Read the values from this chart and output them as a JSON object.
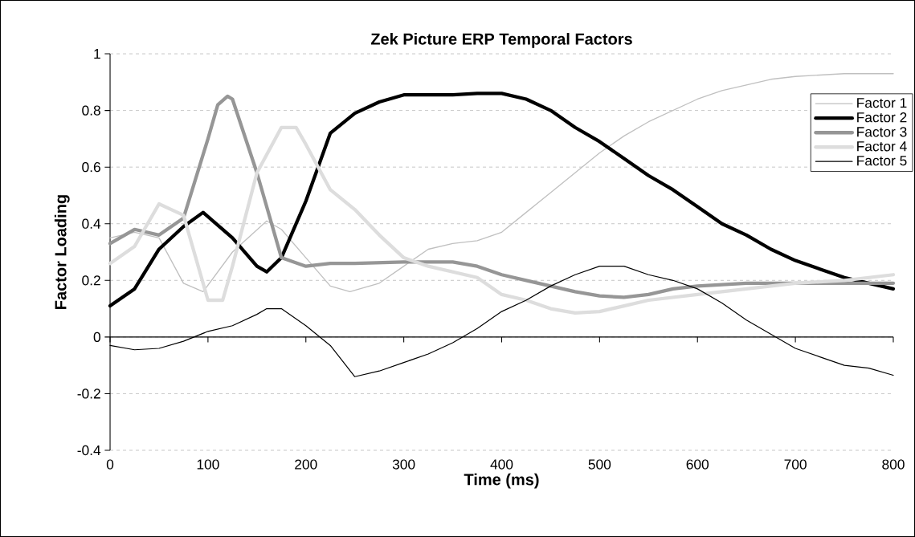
{
  "chart_data": {
    "type": "line",
    "title": "Zek Picture ERP Temporal Factors",
    "xlabel": "Time (ms)",
    "ylabel": "Factor Loading",
    "xlim": [
      0,
      800
    ],
    "xticks": [
      0,
      100,
      200,
      300,
      400,
      500,
      600,
      700,
      800
    ],
    "ylim": [
      -0.4,
      1
    ],
    "yticks": [
      -0.4,
      -0.2,
      0,
      0.2,
      0.4,
      0.6,
      0.8,
      1
    ],
    "grid": "y",
    "legend": "right",
    "marker": "none",
    "line_style": "solid",
    "series": [
      {
        "name": "Factor 1",
        "color": "#c0c0c0",
        "x": [
          0,
          25,
          50,
          75,
          95,
          125,
          160,
          175,
          200,
          225,
          245,
          275,
          300,
          325,
          350,
          375,
          400,
          425,
          450,
          475,
          500,
          525,
          550,
          575,
          600,
          625,
          650,
          675,
          700,
          725,
          750,
          775,
          800
        ],
        "values": [
          0.35,
          0.37,
          0.35,
          0.19,
          0.16,
          0.3,
          0.41,
          0.38,
          0.28,
          0.18,
          0.16,
          0.19,
          0.25,
          0.31,
          0.33,
          0.34,
          0.37,
          0.44,
          0.51,
          0.58,
          0.65,
          0.71,
          0.76,
          0.8,
          0.84,
          0.87,
          0.89,
          0.91,
          0.92,
          0.925,
          0.93,
          0.93,
          0.93
        ]
      },
      {
        "name": "Factor 2",
        "color": "#000000",
        "x": [
          0,
          25,
          50,
          75,
          95,
          125,
          150,
          160,
          175,
          200,
          225,
          250,
          275,
          300,
          325,
          350,
          375,
          400,
          425,
          450,
          475,
          500,
          525,
          550,
          575,
          600,
          625,
          650,
          675,
          700,
          725,
          750,
          775,
          800
        ],
        "values": [
          0.11,
          0.17,
          0.31,
          0.39,
          0.44,
          0.35,
          0.25,
          0.23,
          0.28,
          0.48,
          0.72,
          0.79,
          0.83,
          0.855,
          0.855,
          0.855,
          0.86,
          0.86,
          0.84,
          0.8,
          0.74,
          0.69,
          0.63,
          0.57,
          0.52,
          0.46,
          0.4,
          0.36,
          0.31,
          0.27,
          0.24,
          0.21,
          0.19,
          0.17
        ]
      },
      {
        "name": "Factor 3",
        "color": "#969696",
        "x": [
          0,
          25,
          50,
          75,
          100,
          110,
          120,
          125,
          150,
          175,
          200,
          225,
          250,
          300,
          350,
          375,
          400,
          425,
          450,
          475,
          500,
          525,
          550,
          575,
          600,
          650,
          700,
          750,
          800
        ],
        "values": [
          0.33,
          0.38,
          0.36,
          0.42,
          0.7,
          0.82,
          0.85,
          0.84,
          0.58,
          0.28,
          0.25,
          0.26,
          0.26,
          0.265,
          0.265,
          0.25,
          0.22,
          0.2,
          0.18,
          0.16,
          0.145,
          0.14,
          0.15,
          0.17,
          0.18,
          0.19,
          0.19,
          0.19,
          0.19
        ]
      },
      {
        "name": "Factor 4",
        "color": "#dddddd",
        "x": [
          0,
          25,
          50,
          75,
          100,
          115,
          125,
          150,
          175,
          190,
          200,
          225,
          250,
          275,
          300,
          325,
          350,
          375,
          400,
          425,
          450,
          475,
          500,
          525,
          550,
          575,
          600,
          650,
          700,
          750,
          800
        ],
        "values": [
          0.26,
          0.32,
          0.47,
          0.43,
          0.13,
          0.13,
          0.25,
          0.58,
          0.74,
          0.74,
          0.68,
          0.52,
          0.45,
          0.36,
          0.28,
          0.25,
          0.23,
          0.21,
          0.15,
          0.13,
          0.1,
          0.085,
          0.09,
          0.11,
          0.13,
          0.14,
          0.15,
          0.17,
          0.19,
          0.2,
          0.22
        ]
      },
      {
        "name": "Factor 5",
        "color": "#000000",
        "x": [
          0,
          25,
          50,
          75,
          100,
          125,
          150,
          160,
          175,
          200,
          225,
          250,
          275,
          300,
          325,
          350,
          375,
          400,
          425,
          450,
          475,
          500,
          525,
          550,
          575,
          600,
          625,
          650,
          675,
          700,
          725,
          750,
          775,
          800
        ],
        "values": [
          -0.03,
          -0.045,
          -0.04,
          -0.015,
          0.02,
          0.04,
          0.08,
          0.1,
          0.1,
          0.04,
          -0.03,
          -0.14,
          -0.12,
          -0.09,
          -0.06,
          -0.02,
          0.03,
          0.09,
          0.13,
          0.18,
          0.22,
          0.25,
          0.25,
          0.22,
          0.2,
          0.17,
          0.12,
          0.06,
          0.01,
          -0.04,
          -0.07,
          -0.1,
          -0.11,
          -0.135
        ]
      }
    ]
  }
}
